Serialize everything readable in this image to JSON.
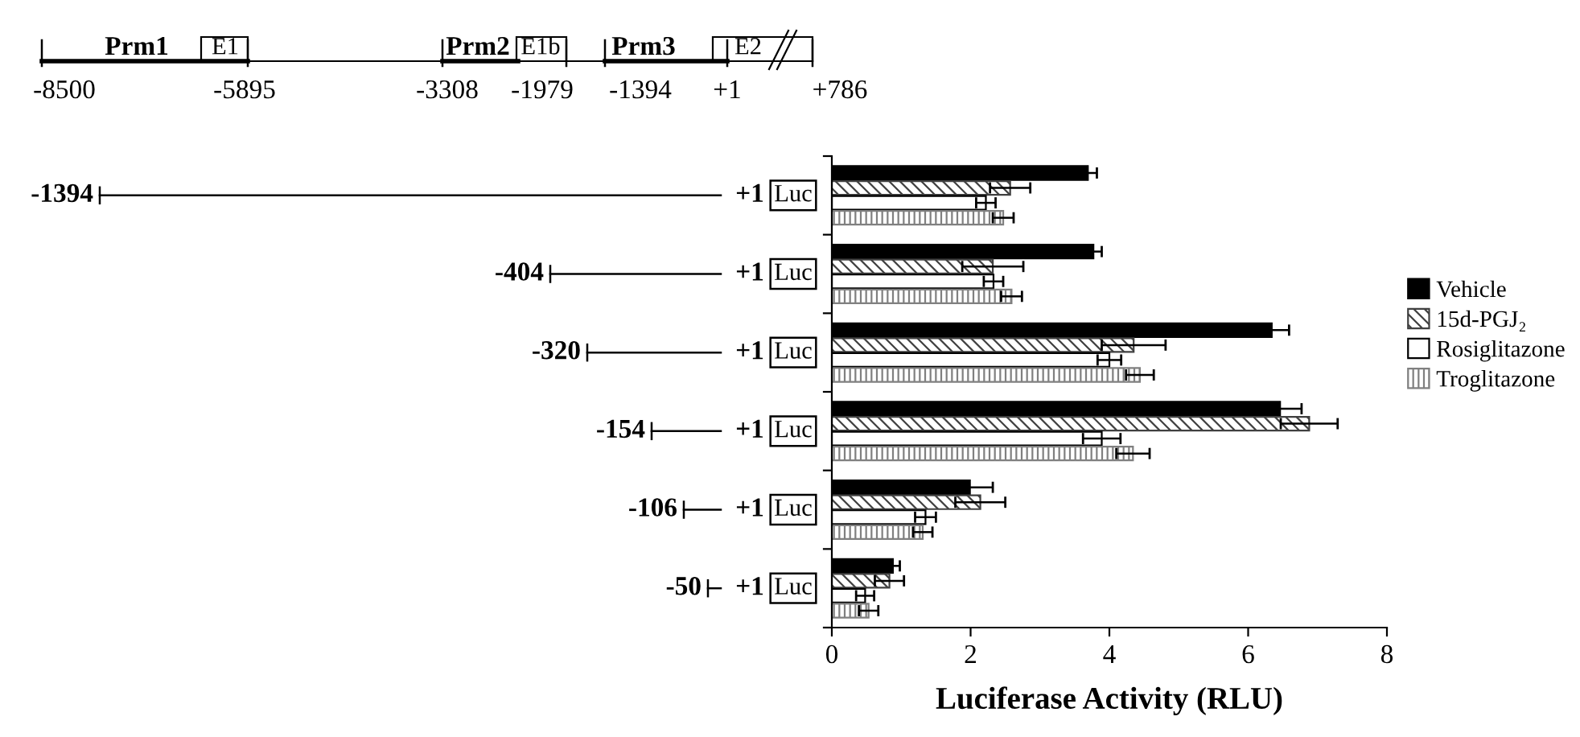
{
  "chart_data": {
    "type": "bar",
    "orientation": "horizontal",
    "xlabel": "Luciferase Activity (RLU)",
    "categories": [
      null,
      null,
      null,
      null,
      null,
      null
    ],
    "series": [
      {
        "name": "Vehicle",
        "color": "#000000",
        "values": [
          3.69,
          3.77,
          6.34,
          6.46,
          1.99,
          0.88
        ],
        "errors": [
          0.13,
          0.12,
          0.25,
          0.31,
          0.33,
          0.1
        ]
      },
      {
        "name": "15d-PGJ₂",
        "color": "#404040",
        "values": [
          2.57,
          2.32,
          4.35,
          6.88,
          2.14,
          0.83
        ],
        "errors": [
          0.29,
          0.44,
          0.46,
          0.41,
          0.36,
          0.21
        ]
      },
      {
        "name": "Rosiglitazone",
        "color": "#ffffff",
        "values": [
          2.22,
          2.33,
          4.0,
          3.89,
          1.35,
          0.48
        ],
        "errors": [
          0.14,
          0.14,
          0.17,
          0.27,
          0.15,
          0.13
        ]
      },
      {
        "name": "Troglitazone",
        "color": "#808080",
        "values": [
          2.47,
          2.59,
          4.44,
          4.34,
          1.31,
          0.53
        ],
        "errors": [
          0.15,
          0.15,
          0.2,
          0.24,
          0.14,
          0.14
        ]
      }
    ],
    "xlim": [
      0,
      8
    ],
    "xticks": [
      0,
      2,
      4,
      6,
      8
    ],
    "grid": false,
    "legend": "right",
    "annotations": [
      "Prm1",
      "E1",
      "Prm2",
      "E1b",
      "Prm3",
      "E2",
      "-8500",
      "-5895",
      "-3308",
      "-1979",
      "-1394",
      "+1",
      "+786",
      "-1394",
      "+1",
      "Luc",
      "-404",
      "+1",
      "Luc",
      "-320",
      "+1",
      "Luc",
      "-154",
      "+1",
      "Luc",
      "-106",
      "+1",
      "Luc",
      "-50",
      "+1",
      "Luc"
    ]
  }
}
